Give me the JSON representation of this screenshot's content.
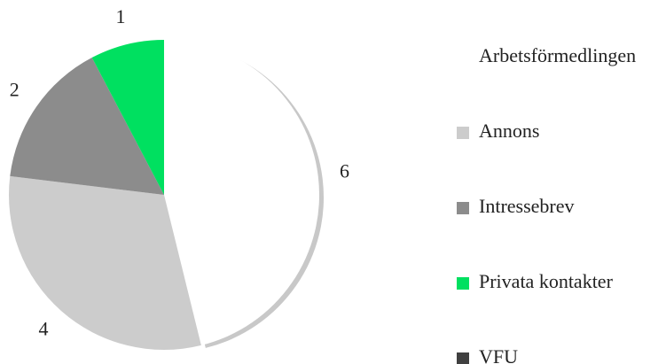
{
  "chart_data": {
    "type": "pie",
    "categories": [
      "Arbetsförmedlingen",
      "Annons",
      "Intressebrev",
      "Privata kontakter",
      "VFU"
    ],
    "values": [
      6,
      4,
      2,
      1,
      0
    ],
    "colors": [
      "#ffffff",
      "#cccccc",
      "#8c8c8c",
      "#00e060",
      "#404040"
    ]
  }
}
